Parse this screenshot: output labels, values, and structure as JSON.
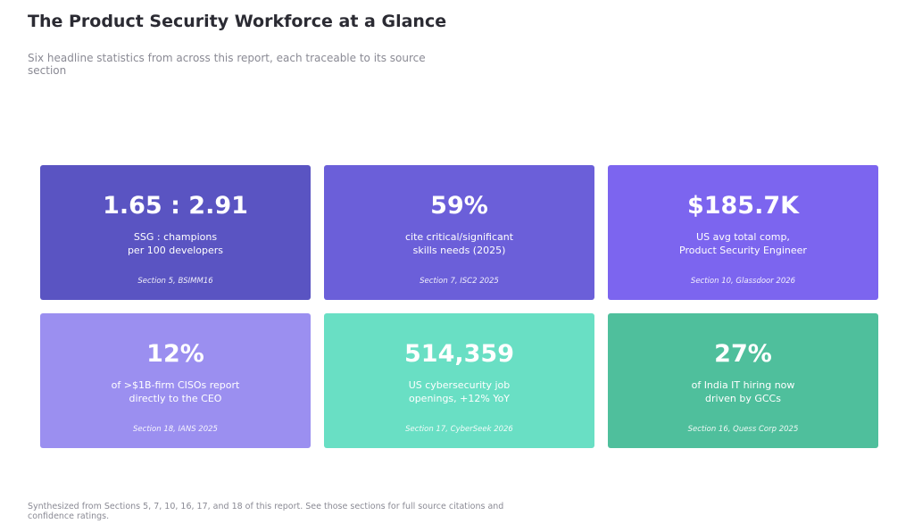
{
  "title": "The Product Security Workforce at a Glance",
  "subtitle": "Six headline statistics from across this report, each traceable to its source section",
  "cards": [
    {
      "value": "1.65 : 2.91",
      "line1": "SSG : champions",
      "line2": "per 100 developers",
      "source": "Section 5, BSIMM16",
      "color": "#5a54c2"
    },
    {
      "value": "59%",
      "line1": "cite critical/significant",
      "line2": "skills needs (2025)",
      "source": "Section 7, ISC2 2025",
      "color": "#6b5fd9"
    },
    {
      "value": "$185.7K",
      "line1": "US avg total comp,",
      "line2": "Product Security Engineer",
      "source": "Section 10, Glassdoor 2026",
      "color": "#7c65ef"
    },
    {
      "value": "12%",
      "line1": "of >$1B-firm CISOs report",
      "line2": "directly to the CEO",
      "source": "Section 18, IANS 2025",
      "color": "#9b8ff0"
    },
    {
      "value": "514,359",
      "line1": "US cybersecurity job",
      "line2": "openings, +12% YoY",
      "source": "Section 17, CyberSeek 2026",
      "color": "#69dfc4"
    },
    {
      "value": "27%",
      "line1": "of India IT hiring now",
      "line2": "driven by GCCs",
      "source": "Section 16, Quess Corp 2025",
      "color": "#4fbf9c"
    }
  ],
  "footer": "Synthesized from Sections 5, 7, 10, 16, 17, and 18 of this report. See those sections for full source citations and confidence ratings."
}
